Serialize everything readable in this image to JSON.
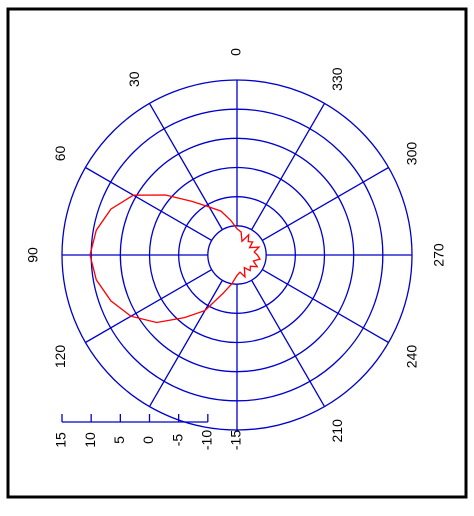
{
  "chart_data": {
    "type": "polar",
    "theta": [
      0,
      10,
      20,
      30,
      40,
      50,
      60,
      70,
      80,
      90,
      100,
      110,
      120,
      130,
      140,
      150,
      160,
      170,
      180,
      190,
      200,
      210,
      220,
      230,
      240,
      250,
      260,
      270,
      280,
      290,
      300,
      310,
      320,
      330,
      340,
      350
    ],
    "series": [
      {
        "color": "#ff0000",
        "values": [
          -10.5,
          -9,
          -7,
          -5.5,
          -3,
          1,
          5.5,
          8,
          9.5,
          10.2,
          9.5,
          8,
          6,
          3,
          -1,
          -4,
          -8,
          -10,
          -11.5,
          -12,
          -11,
          -12.5,
          -11.5,
          -12,
          -11,
          -12,
          -11,
          -11.5,
          -12,
          -11,
          -12.5,
          -11.5,
          -12,
          -11,
          -12.5,
          -11
        ]
      }
    ],
    "rlim": [
      -15,
      15
    ],
    "rticks": [
      -15,
      -10,
      -5,
      0,
      5,
      10,
      15
    ],
    "thetaticks": [
      0,
      30,
      60,
      90,
      120,
      {
        "value": 150,
        "label": null
      },
      {
        "value": 180,
        "label": null
      },
      210,
      240,
      270,
      300,
      330
    ],
    "grid_color": "#0000cc"
  }
}
